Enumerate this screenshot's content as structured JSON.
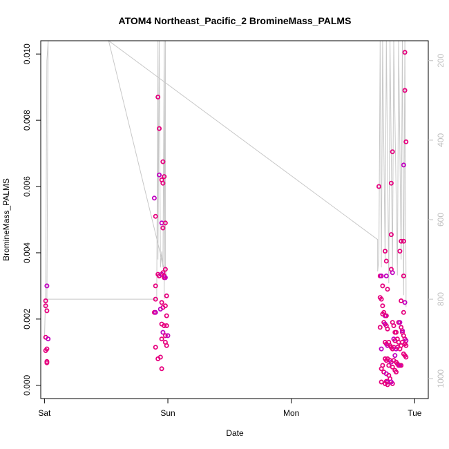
{
  "chart_data": {
    "type": "scatter",
    "title": "ATOM4 Northeast_Pacific_2 BromineMass_PALMS",
    "xlabel": "Date",
    "ylabel": "BromineMass_PALMS",
    "x_ticks": [
      "Sat",
      "Sun",
      "Mon",
      "Tue"
    ],
    "y_ticks": [
      "0.000",
      "0.002",
      "0.004",
      "0.006",
      "0.008",
      "0.010"
    ],
    "y_right_ticks": [
      "200",
      "400",
      "600",
      "800",
      "1000"
    ],
    "ylim": [
      -0.0004,
      0.0104
    ],
    "xlim": [
      -0.03,
      3.11
    ],
    "y2lim": [
      1050,
      150
    ],
    "y2_reversed": true,
    "colors": {
      "points": "#e6007e",
      "points_alt": "#c000c0",
      "pressure_line": "#c8c8c8",
      "axis": "#000000",
      "right_axis": "#bfbfbf"
    },
    "series": [
      {
        "type": "scatter",
        "x_unit": "days since Sat 00:00",
        "points": [
          [
            0.02,
            0.003
          ],
          [
            0.01,
            0.00255
          ],
          [
            0.01,
            0.0024
          ],
          [
            0.02,
            0.00225
          ],
          [
            0.01,
            0.00145
          ],
          [
            0.03,
            0.0014
          ],
          [
            0.01,
            0.00105
          ],
          [
            0.02,
            0.0011
          ],
          [
            0.02,
            0.00072
          ],
          [
            0.02,
            0.00068
          ],
          [
            0.89,
            0.00565
          ],
          [
            0.9,
            0.0051
          ],
          [
            0.9,
            0.003
          ],
          [
            0.9,
            0.0026
          ],
          [
            0.89,
            0.0022
          ],
          [
            0.9,
            0.0022
          ],
          [
            0.9,
            0.00115
          ],
          [
            0.92,
            0.0008
          ],
          [
            0.92,
            0.0087
          ],
          [
            0.93,
            0.00775
          ],
          [
            0.93,
            0.00635
          ],
          [
            0.95,
            0.0062
          ],
          [
            0.97,
            0.0063
          ],
          [
            0.96,
            0.00675
          ],
          [
            0.96,
            0.0061
          ],
          [
            0.95,
            0.0049
          ],
          [
            0.98,
            0.0049
          ],
          [
            0.96,
            0.00475
          ],
          [
            0.92,
            0.00335
          ],
          [
            0.93,
            0.0033
          ],
          [
            0.95,
            0.00335
          ],
          [
            0.96,
            0.0034
          ],
          [
            0.97,
            0.0033
          ],
          [
            0.98,
            0.0035
          ],
          [
            0.97,
            0.00325
          ],
          [
            0.98,
            0.00325
          ],
          [
            0.99,
            0.0027
          ],
          [
            0.95,
            0.0025
          ],
          [
            0.96,
            0.00235
          ],
          [
            0.98,
            0.0024
          ],
          [
            0.94,
            0.0023
          ],
          [
            0.99,
            0.0021
          ],
          [
            0.95,
            0.00185
          ],
          [
            0.97,
            0.0018
          ],
          [
            0.99,
            0.0018
          ],
          [
            0.96,
            0.0016
          ],
          [
            0.98,
            0.0015
          ],
          [
            0.95,
            0.0014
          ],
          [
            0.98,
            0.0013
          ],
          [
            0.99,
            0.0012
          ],
          [
            1.0,
            0.0015
          ],
          [
            0.94,
            0.00085
          ],
          [
            0.95,
            0.0005
          ],
          [
            2.71,
            0.006
          ],
          [
            2.72,
            0.0033
          ],
          [
            2.73,
            0.0033
          ],
          [
            2.72,
            0.00265
          ],
          [
            2.73,
            0.0026
          ],
          [
            2.74,
            0.0024
          ],
          [
            2.75,
            0.0022
          ],
          [
            2.76,
            0.0021
          ],
          [
            2.74,
            0.00215
          ],
          [
            2.77,
            0.0021
          ],
          [
            2.76,
            0.00405
          ],
          [
            2.77,
            0.00375
          ],
          [
            2.77,
            0.0033
          ],
          [
            2.78,
            0.0029
          ],
          [
            2.74,
            0.003
          ],
          [
            2.72,
            0.00175
          ],
          [
            2.75,
            0.0019
          ],
          [
            2.76,
            0.00185
          ],
          [
            2.77,
            0.0018
          ],
          [
            2.78,
            0.0017
          ],
          [
            2.76,
            0.0013
          ],
          [
            2.77,
            0.00125
          ],
          [
            2.78,
            0.0012
          ],
          [
            2.79,
            0.0013
          ],
          [
            2.8,
            0.0012
          ],
          [
            2.81,
            0.00115
          ],
          [
            2.82,
            0.0011
          ],
          [
            2.73,
            0.0011
          ],
          [
            2.76,
            0.0008
          ],
          [
            2.77,
            0.00075
          ],
          [
            2.78,
            0.0008
          ],
          [
            2.8,
            0.00075
          ],
          [
            2.81,
            0.0007
          ],
          [
            2.74,
            0.0006
          ],
          [
            2.79,
            0.0006
          ],
          [
            2.82,
            0.00055
          ],
          [
            2.75,
            0.0004
          ],
          [
            2.77,
            0.00035
          ],
          [
            2.79,
            0.0003
          ],
          [
            2.73,
            0.0005
          ],
          [
            2.73,
            0.0001
          ],
          [
            2.77,
            0.00012
          ],
          [
            2.78,
            0.0001
          ],
          [
            2.76,
            5e-05
          ],
          [
            2.78,
            2e-05
          ],
          [
            2.82,
            5e-05
          ],
          [
            2.8,
            0.0002
          ],
          [
            2.81,
            0.0001
          ],
          [
            2.81,
            0.0061
          ],
          [
            2.82,
            0.00705
          ],
          [
            2.81,
            0.00455
          ],
          [
            2.81,
            0.0035
          ],
          [
            2.82,
            0.0034
          ],
          [
            2.82,
            0.0019
          ],
          [
            2.83,
            0.0018
          ],
          [
            2.84,
            0.0016
          ],
          [
            2.85,
            0.0016
          ],
          [
            2.83,
            0.0014
          ],
          [
            2.84,
            0.00135
          ],
          [
            2.86,
            0.0014
          ],
          [
            2.87,
            0.0013
          ],
          [
            2.83,
            0.00115
          ],
          [
            2.85,
            0.0011
          ],
          [
            2.86,
            0.00115
          ],
          [
            2.88,
            0.0011
          ],
          [
            2.89,
            0.0012
          ],
          [
            2.9,
            0.0013
          ],
          [
            2.84,
            0.0009
          ],
          [
            2.83,
            0.00075
          ],
          [
            2.85,
            0.0007
          ],
          [
            2.86,
            0.00065
          ],
          [
            2.87,
            0.0006
          ],
          [
            2.88,
            0.0006
          ],
          [
            2.89,
            0.0006
          ],
          [
            2.84,
            0.00045
          ],
          [
            2.85,
            0.0004
          ],
          [
            2.87,
            0.0019
          ],
          [
            2.88,
            0.0019
          ],
          [
            2.88,
            0.00405
          ],
          [
            2.89,
            0.00435
          ],
          [
            2.91,
            0.00435
          ],
          [
            2.89,
            0.00255
          ],
          [
            2.92,
            0.0025
          ],
          [
            2.91,
            0.0022
          ],
          [
            2.91,
            0.0033
          ],
          [
            2.92,
            0.0089
          ],
          [
            2.92,
            0.01005
          ],
          [
            2.91,
            0.00665
          ],
          [
            2.93,
            0.00735
          ],
          [
            2.9,
            0.0016
          ],
          [
            2.91,
            0.0015
          ],
          [
            2.92,
            0.0014
          ],
          [
            2.93,
            0.00135
          ],
          [
            2.92,
            0.00125
          ],
          [
            2.93,
            0.0012
          ],
          [
            2.92,
            0.0009
          ],
          [
            2.93,
            0.00085
          ],
          [
            2.9,
            0.00165
          ],
          [
            2.89,
            0.00175
          ],
          [
            2.91,
            0.00095
          ]
        ]
      },
      {
        "type": "line",
        "name": "pressure",
        "axis": "right",
        "points": [
          [
            0.0,
            900
          ],
          [
            0.01,
            780
          ],
          [
            0.02,
            200
          ],
          [
            0.03,
            100
          ],
          [
            0.02,
            800
          ],
          [
            0.91,
            800
          ],
          [
            0.91,
            780
          ],
          [
            0.92,
            100
          ],
          [
            0.92,
            700
          ],
          [
            0.93,
            100
          ],
          [
            0.94,
            720
          ],
          [
            0.95,
            680
          ],
          [
            0.96,
            720
          ],
          [
            0.97,
            100
          ],
          [
            0.97,
            800
          ],
          [
            0.98,
            100
          ],
          [
            0.98,
            720
          ],
          [
            0.99,
            750
          ],
          [
            0.52,
            100
          ],
          [
            2.7,
            650
          ],
          [
            2.7,
            730
          ],
          [
            2.71,
            700
          ],
          [
            2.72,
            100
          ],
          [
            2.73,
            720
          ],
          [
            2.74,
            100
          ],
          [
            2.76,
            700
          ],
          [
            2.77,
            100
          ],
          [
            2.79,
            760
          ],
          [
            2.8,
            100
          ],
          [
            2.82,
            720
          ],
          [
            2.83,
            100
          ],
          [
            2.86,
            740
          ],
          [
            2.87,
            100
          ],
          [
            2.89,
            700
          ],
          [
            2.9,
            100
          ],
          [
            2.91,
            790
          ],
          [
            2.92,
            100
          ],
          [
            2.93,
            760
          ],
          [
            2.93,
            820
          ]
        ]
      }
    ]
  }
}
